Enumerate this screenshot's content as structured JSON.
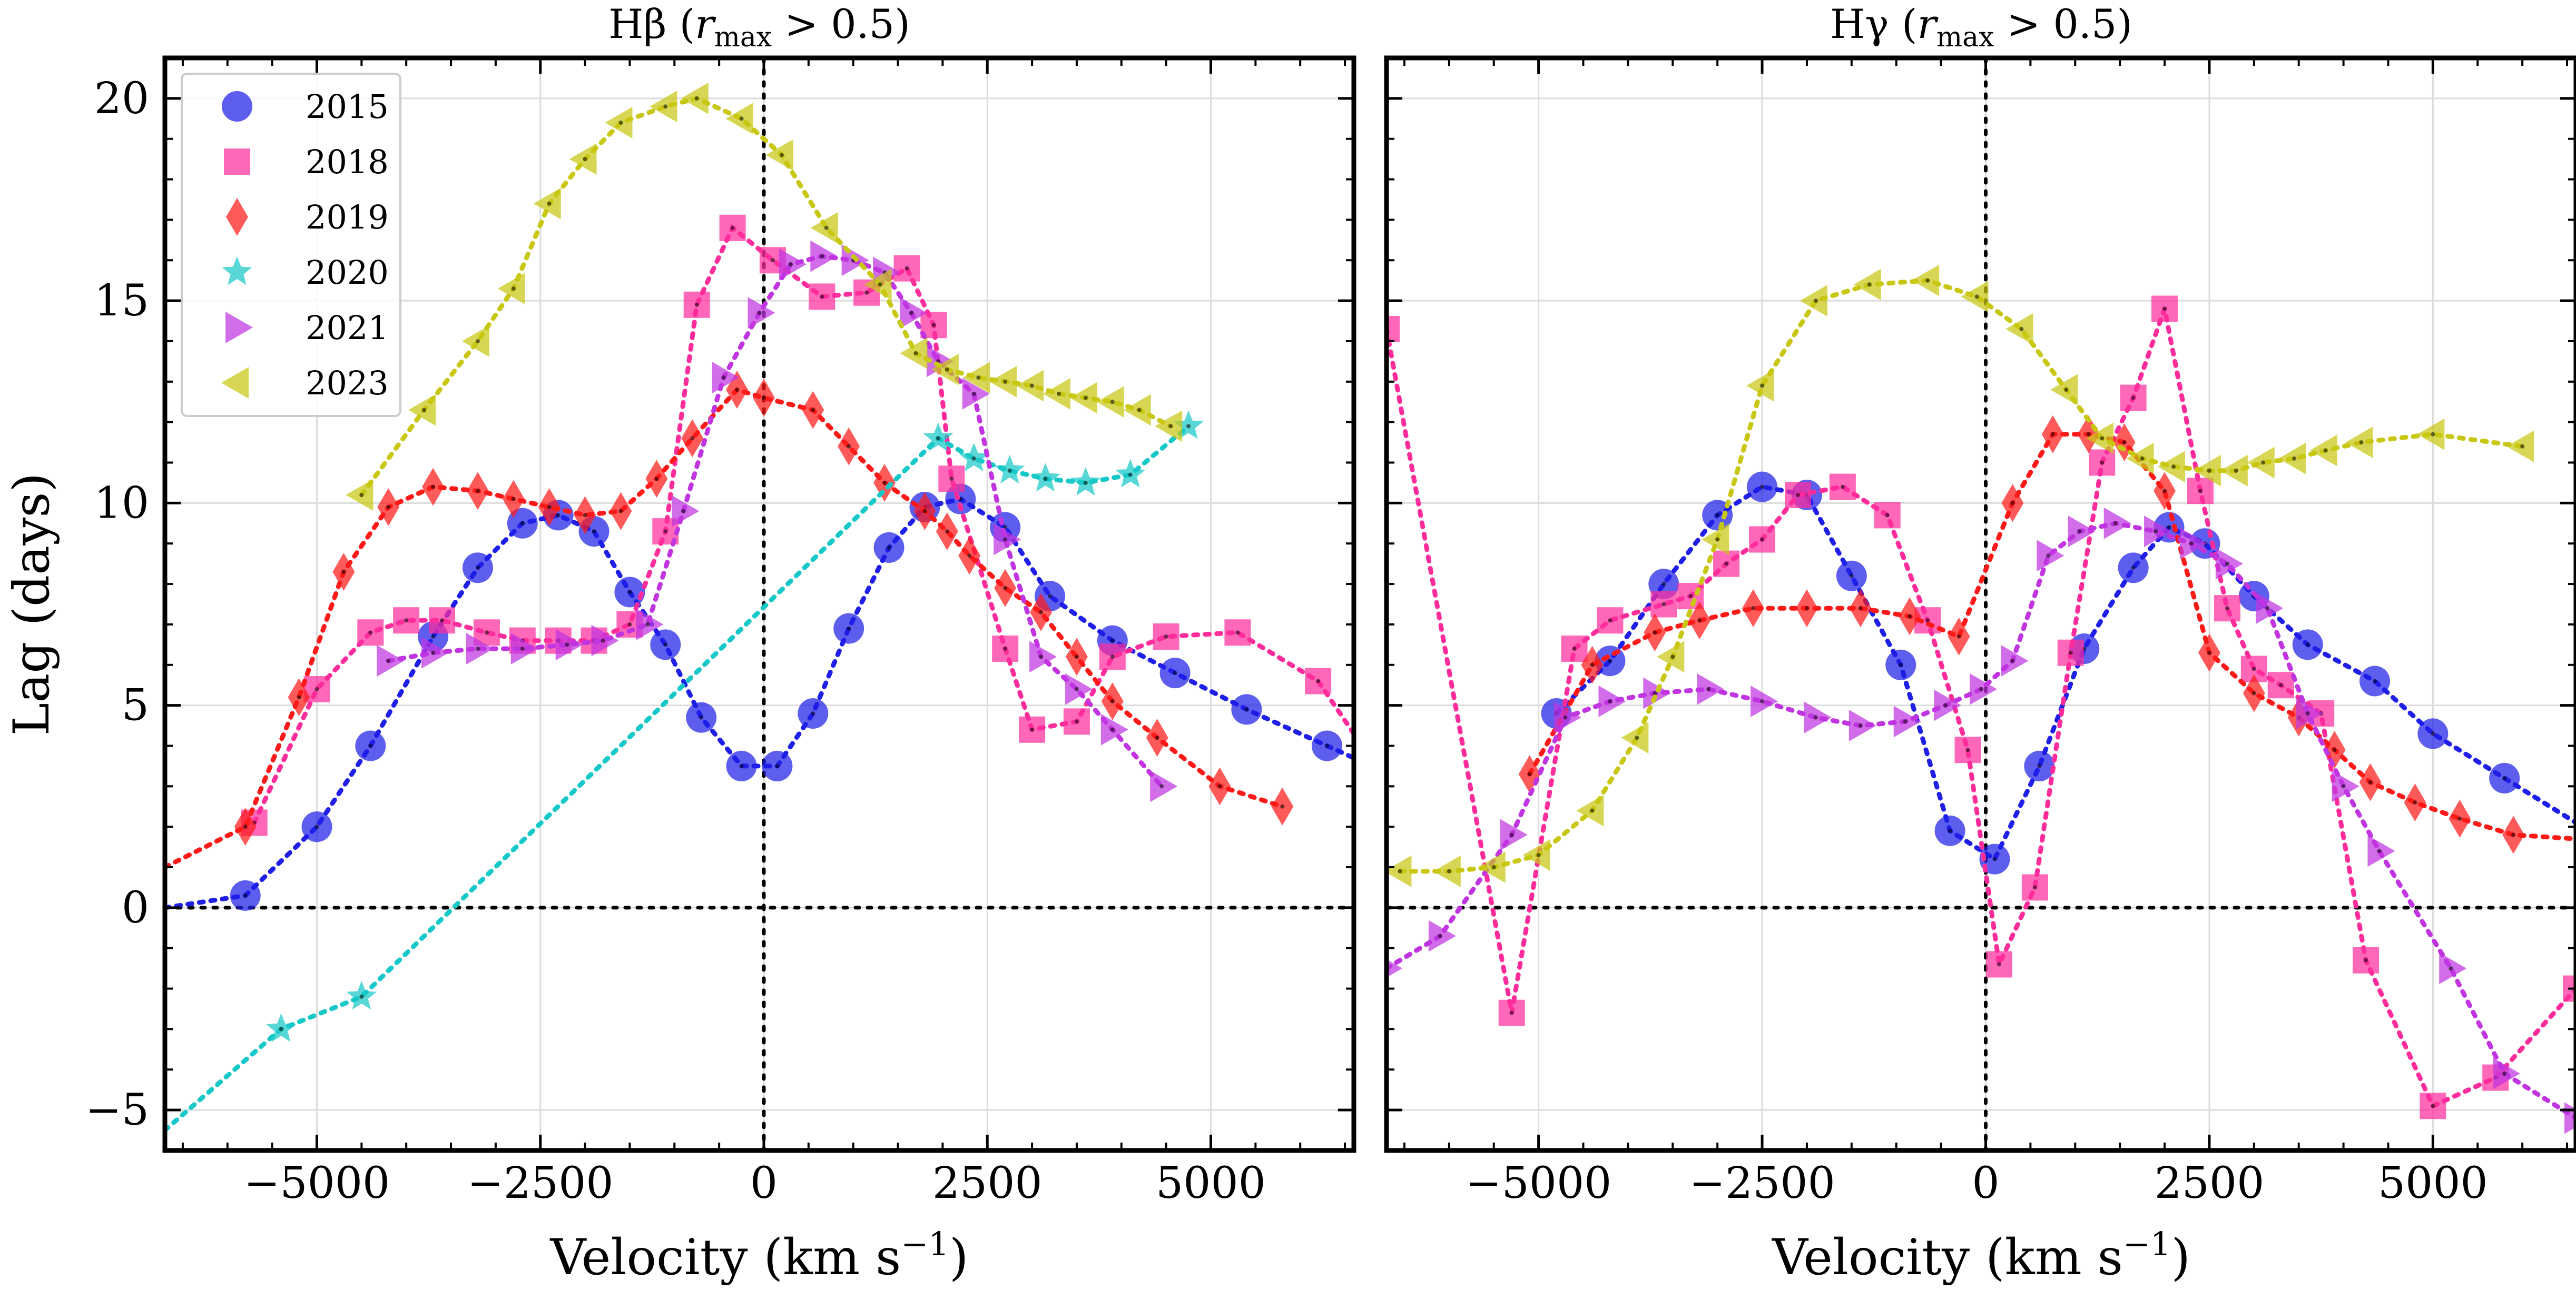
{
  "chart_data": [
    {
      "type": "line",
      "panel": "left",
      "title": "Hβ (r_max > 0.5)",
      "title_main": "Hβ (",
      "title_r": "r",
      "title_sub": "max",
      "title_rest": " > 0.5)",
      "xlabel": "Velocity (km s⁻¹)",
      "xlabel_main": "Velocity (km s",
      "xlabel_sup": "−1",
      "xlabel_close": ")",
      "ylabel": "Lag (days)",
      "xlim": [
        -6700,
        6600
      ],
      "ylim": [
        -6,
        21
      ],
      "xticks": [
        -5000,
        -2500,
        0,
        2500,
        5000
      ],
      "xtick_labels": [
        "−5000",
        "−2500",
        "0",
        "2500",
        "5000"
      ],
      "yticks": [
        -5,
        0,
        5,
        10,
        15,
        20
      ],
      "ytick_labels": [
        "−5",
        "0",
        "5",
        "10",
        "15",
        "20"
      ],
      "grid": true,
      "legend_position": "top-left",
      "series": [
        {
          "name": "2015",
          "color": "#1f1fe8",
          "marker": "circle",
          "x": [
            -5800,
            -5000,
            -4400,
            -3700,
            -3200,
            -2700,
            -2300,
            -1900,
            -1500,
            -1100,
            -700,
            -250,
            150,
            550,
            950,
            1400,
            1800,
            2200,
            2700,
            3200,
            3900,
            4600,
            5400,
            6300
          ],
          "y": [
            0.3,
            2.0,
            4.0,
            6.7,
            8.4,
            9.5,
            9.7,
            9.3,
            7.8,
            6.5,
            4.7,
            3.5,
            3.5,
            4.8,
            6.9,
            8.9,
            9.9,
            10.1,
            9.4,
            7.7,
            6.6,
            5.8,
            4.9,
            4.0
          ],
          "line_extend": {
            "left": [
              -6700,
              0.0
            ],
            "right": [
              6600,
              3.7
            ]
          }
        },
        {
          "name": "2018",
          "color": "#ff2d9c",
          "marker": "square",
          "x": [
            -5700,
            -5000,
            -4400,
            -4000,
            -3600,
            -3100,
            -2700,
            -2300,
            -1900,
            -1500,
            -1100,
            -750,
            -350,
            100,
            650,
            1150,
            1600,
            1900,
            2100,
            2700,
            3000,
            3500,
            3900,
            4500,
            5300,
            6200
          ],
          "y": [
            2.1,
            5.4,
            6.8,
            7.1,
            7.1,
            6.8,
            6.6,
            6.6,
            6.6,
            7.0,
            9.3,
            14.9,
            16.8,
            16.0,
            15.1,
            15.2,
            15.8,
            14.4,
            10.6,
            6.4,
            4.4,
            4.6,
            6.2,
            6.7,
            6.8,
            5.6
          ],
          "line_extend": {
            "right": [
              6600,
              4.3
            ]
          }
        },
        {
          "name": "2019",
          "color": "#ff1a1a",
          "marker": "diamond",
          "x": [
            -5800,
            -5200,
            -4700,
            -4200,
            -3700,
            -3200,
            -2800,
            -2400,
            -2000,
            -1600,
            -1200,
            -800,
            -300,
            0,
            550,
            950,
            1350,
            1800,
            2050,
            2300,
            2700,
            3100,
            3500,
            3900,
            4400,
            5100,
            5800
          ],
          "y": [
            2.0,
            5.2,
            8.3,
            9.9,
            10.4,
            10.3,
            10.1,
            9.9,
            9.7,
            9.8,
            10.6,
            11.6,
            12.8,
            12.6,
            12.3,
            11.4,
            10.5,
            9.8,
            9.3,
            8.7,
            7.9,
            7.3,
            6.2,
            5.1,
            4.2,
            3.0,
            2.5
          ],
          "line_extend": {
            "left": [
              -6700,
              1.0
            ]
          }
        },
        {
          "name": "2020",
          "color": "#17c8c8",
          "marker": "star",
          "x": [
            -5400,
            -4500,
            1950,
            2350,
            2750,
            3150,
            3600,
            4100,
            4750
          ],
          "y": [
            -3.0,
            -2.2,
            11.6,
            11.1,
            10.8,
            10.6,
            10.5,
            10.7,
            11.9
          ],
          "line_extend": {
            "left": [
              -6700,
              -5.5
            ]
          }
        },
        {
          "name": "2021",
          "color": "#c035e0",
          "marker": "triangle-right",
          "x": [
            -4200,
            -3700,
            -3200,
            -2700,
            -2200,
            -1800,
            -1300,
            -900,
            -450,
            -50,
            300,
            650,
            1000,
            1350,
            1650,
            1950,
            2350,
            2700,
            3100,
            3500,
            3900,
            4450
          ],
          "y": [
            6.1,
            6.3,
            6.4,
            6.4,
            6.5,
            6.6,
            7.0,
            9.8,
            13.1,
            14.7,
            15.9,
            16.1,
            16.0,
            15.7,
            14.7,
            13.5,
            12.7,
            9.1,
            6.2,
            5.4,
            4.4,
            3.0
          ]
        },
        {
          "name": "2023",
          "color": "#c8c814",
          "marker": "triangle-left",
          "x": [
            -4500,
            -3800,
            -3200,
            -2800,
            -2400,
            -2000,
            -1600,
            -1100,
            -750,
            -250,
            200,
            700,
            1300,
            1700,
            2050,
            2400,
            2700,
            3000,
            3300,
            3600,
            3900,
            4200,
            4550
          ],
          "y": [
            10.2,
            12.3,
            14.0,
            15.3,
            17.4,
            18.5,
            19.4,
            19.8,
            20.0,
            19.5,
            18.6,
            16.8,
            15.4,
            13.7,
            13.3,
            13.1,
            13.0,
            12.9,
            12.7,
            12.6,
            12.5,
            12.3,
            11.9
          ]
        }
      ]
    },
    {
      "type": "line",
      "panel": "right",
      "title": "Hγ (r_max > 0.5)",
      "title_main": "Hγ (",
      "title_r": "r",
      "title_sub": "max",
      "title_rest": " > 0.5)",
      "xlabel": "Velocity (km s⁻¹)",
      "xlabel_main": "Velocity (km s",
      "xlabel_sup": "−1",
      "xlabel_close": ")",
      "ylabel": "",
      "xlim": [
        -6700,
        6600
      ],
      "ylim": [
        -6,
        21
      ],
      "xticks": [
        -5000,
        -2500,
        0,
        2500,
        5000
      ],
      "xtick_labels": [
        "−5000",
        "−2500",
        "0",
        "2500",
        "5000"
      ],
      "yticks": [
        -5,
        0,
        5,
        10,
        15,
        20
      ],
      "grid": true,
      "series": [
        {
          "name": "2015",
          "color": "#1f1fe8",
          "marker": "circle",
          "x": [
            -4800,
            -4200,
            -3600,
            -3000,
            -2500,
            -2000,
            -1500,
            -950,
            -400,
            100,
            600,
            1100,
            1650,
            2050,
            2450,
            3000,
            3600,
            4350,
            5000,
            5800
          ],
          "y": [
            4.8,
            6.1,
            8.0,
            9.7,
            10.4,
            10.2,
            8.2,
            6.0,
            1.9,
            1.2,
            3.5,
            6.4,
            8.4,
            9.4,
            9.0,
            7.7,
            6.5,
            5.6,
            4.3,
            3.2
          ],
          "line_extend": {
            "right": [
              6600,
              2.1
            ]
          }
        },
        {
          "name": "2018",
          "color": "#ff2d9c",
          "marker": "square",
          "x": [
            -6700,
            -5300,
            -4600,
            -4200,
            -3600,
            -3300,
            -2900,
            -2500,
            -2100,
            -1600,
            -1100,
            -650,
            -200,
            150,
            550,
            950,
            1300,
            1650,
            2000,
            2400,
            2700,
            3000,
            3300,
            3750,
            4250,
            5000,
            5700,
            6600
          ],
          "y": [
            14.3,
            -2.6,
            6.4,
            7.1,
            7.5,
            7.7,
            8.5,
            9.1,
            10.2,
            10.4,
            9.7,
            7.1,
            3.9,
            -1.4,
            0.5,
            6.3,
            11.0,
            12.6,
            14.8,
            10.3,
            7.4,
            5.9,
            5.5,
            4.8,
            -1.3,
            -4.9,
            -4.2,
            -2.0
          ]
        },
        {
          "name": "2019",
          "color": "#ff1a1a",
          "marker": "diamond",
          "x": [
            -5100,
            -4400,
            -3700,
            -3200,
            -2600,
            -2000,
            -1400,
            -850,
            -300,
            300,
            750,
            1150,
            1550,
            2000,
            2500,
            3000,
            3500,
            3900,
            4300,
            4800,
            5300,
            5900
          ],
          "y": [
            3.3,
            6.0,
            6.8,
            7.1,
            7.4,
            7.4,
            7.4,
            7.2,
            6.7,
            10.0,
            11.7,
            11.7,
            11.5,
            10.3,
            6.3,
            5.3,
            4.7,
            3.9,
            3.1,
            2.6,
            2.2,
            1.8
          ],
          "line_extend": {
            "right": [
              6600,
              1.7
            ]
          }
        },
        {
          "name": "2020",
          "color": "#17c8c8",
          "marker": "star",
          "x": [],
          "y": []
        },
        {
          "name": "2021",
          "color": "#c035e0",
          "marker": "triangle-right",
          "x": [
            -6700,
            -6100,
            -5300,
            -4700,
            -4200,
            -3700,
            -3100,
            -2500,
            -1900,
            -1400,
            -900,
            -450,
            -50,
            300,
            700,
            1050,
            1450,
            1900,
            2300,
            2700,
            3150,
            3600,
            4000,
            4400,
            5200,
            5800,
            6600
          ],
          "y": [
            -1.5,
            -0.7,
            1.8,
            4.7,
            5.1,
            5.3,
            5.4,
            5.1,
            4.7,
            4.5,
            4.6,
            5.0,
            5.4,
            6.1,
            8.7,
            9.3,
            9.5,
            9.3,
            9.0,
            8.5,
            7.4,
            4.8,
            3.0,
            1.4,
            -1.5,
            -4.1,
            -5.2
          ]
        },
        {
          "name": "2023",
          "color": "#c8c814",
          "marker": "triangle-left",
          "x": [
            -6550,
            -6000,
            -5500,
            -5000,
            -4400,
            -3900,
            -3500,
            -3000,
            -2500,
            -1900,
            -1300,
            -650,
            -100,
            400,
            900,
            1300,
            1750,
            2100,
            2500,
            2800,
            3100,
            3450,
            3800,
            4200,
            5000,
            6000
          ],
          "y": [
            0.9,
            0.9,
            1.0,
            1.3,
            2.4,
            4.2,
            6.2,
            9.1,
            12.9,
            15.0,
            15.4,
            15.5,
            15.1,
            14.3,
            12.8,
            11.6,
            11.1,
            10.9,
            10.8,
            10.8,
            11.0,
            11.1,
            11.3,
            11.5,
            11.7,
            11.4
          ]
        }
      ]
    }
  ]
}
